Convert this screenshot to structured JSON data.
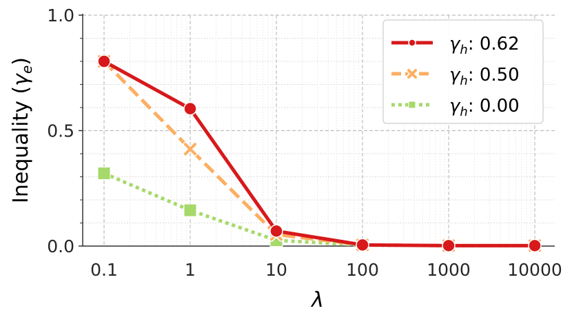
{
  "chart_data": {
    "type": "line",
    "x_scale": "log",
    "x": [
      0.1,
      1,
      10,
      100,
      1000,
      10000
    ],
    "x_tick_labels": [
      "0.1",
      "1",
      "10",
      "100",
      "1000",
      "10000"
    ],
    "y_ticks": [
      0.0,
      0.5,
      1.0
    ],
    "y_tick_labels": [
      "0.0",
      "0.5",
      "1.0"
    ],
    "ylim": [
      0,
      1
    ],
    "xlabel": "λ",
    "ylabel": {
      "prefix": "Inequality (",
      "symbol": "γ",
      "sub": "e",
      "suffix": ")"
    },
    "grid": true,
    "legend_position": "top-right",
    "series": [
      {
        "name": "γh: 0.62",
        "name_symbol": "γ",
        "name_sub": "h",
        "name_value": ": 0.62",
        "color": "#d7191c",
        "style": "solid",
        "marker": "circle",
        "values": [
          0.8,
          0.595,
          0.065,
          0.005,
          0.002,
          0.002
        ]
      },
      {
        "name": "γh: 0.50",
        "name_symbol": "γ",
        "name_sub": "h",
        "name_value": ": 0.50",
        "color": "#fdae61",
        "style": "dashed",
        "marker": "x",
        "values": [
          0.8,
          0.42,
          0.05,
          0.005,
          0.002,
          0.002
        ]
      },
      {
        "name": "γh: 0.00",
        "name_symbol": "γ",
        "name_sub": "h",
        "name_value": ": 0.00",
        "color": "#a6d96a",
        "style": "dotted",
        "marker": "square",
        "values": [
          0.315,
          0.155,
          0.025,
          0.004,
          0.002,
          0.002
        ]
      }
    ]
  }
}
